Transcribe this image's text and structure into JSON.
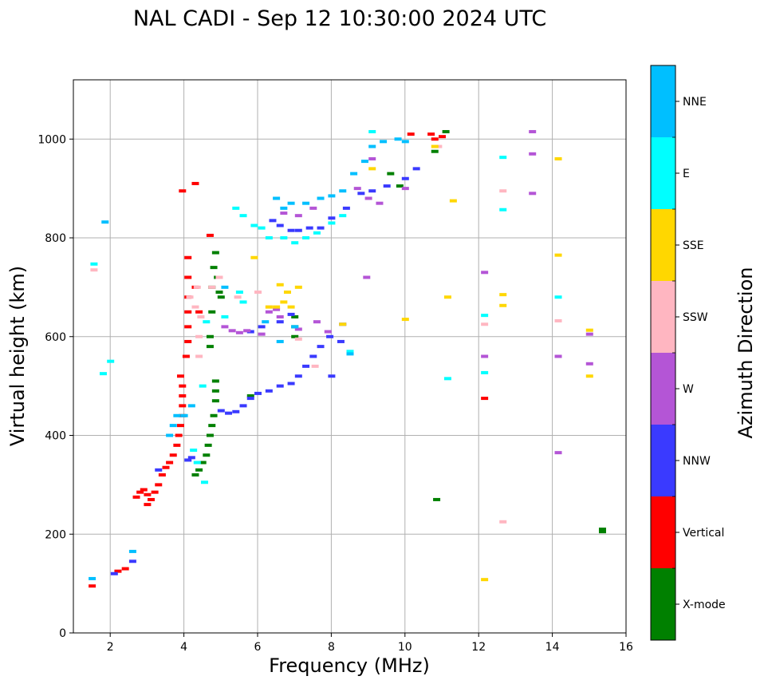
{
  "chart_data": {
    "type": "scatter",
    "title": "NAL CADI - Sep 12 10:30:00 2024 UTC",
    "xlabel": "Frequency (MHz)",
    "ylabel": "Virtual height (km)",
    "xlim": [
      1,
      16
    ],
    "ylim": [
      0,
      1120
    ],
    "xticks": [
      2,
      4,
      6,
      8,
      10,
      12,
      14,
      16
    ],
    "yticks": [
      0,
      200,
      400,
      600,
      800,
      1000
    ],
    "grid": true,
    "colorbar": {
      "label": "Azimuth Direction",
      "categories": [
        {
          "name": "X-mode",
          "color": "#008000"
        },
        {
          "name": "Vertical",
          "color": "#ff0000"
        },
        {
          "name": "NNW",
          "color": "#3a3aff"
        },
        {
          "name": "W",
          "color": "#b455d6"
        },
        {
          "name": "SSW",
          "color": "#ffb6c1"
        },
        {
          "name": "SSE",
          "color": "#ffd700"
        },
        {
          "name": "E",
          "color": "#00ffff"
        },
        {
          "name": "NNE",
          "color": "#00bfff"
        }
      ]
    },
    "series": [
      {
        "name": "X-mode",
        "points": [
          [
            4.85,
            510
          ],
          [
            4.85,
            490
          ],
          [
            4.85,
            470
          ],
          [
            4.8,
            440
          ],
          [
            4.75,
            420
          ],
          [
            4.7,
            400
          ],
          [
            4.65,
            380
          ],
          [
            4.6,
            360
          ],
          [
            4.5,
            345
          ],
          [
            4.4,
            330
          ],
          [
            4.3,
            320
          ],
          [
            4.7,
            580
          ],
          [
            4.7,
            600
          ],
          [
            4.75,
            650
          ],
          [
            4.75,
            700
          ],
          [
            4.8,
            740
          ],
          [
            4.85,
            770
          ],
          [
            4.9,
            720
          ],
          [
            4.95,
            690
          ],
          [
            5.0,
            680
          ],
          [
            7.0,
            640
          ],
          [
            7.0,
            620
          ],
          [
            7.0,
            600
          ],
          [
            10.85,
            270
          ],
          [
            15.35,
            210
          ],
          [
            15.35,
            205
          ],
          [
            9.6,
            930
          ],
          [
            9.85,
            905
          ],
          [
            11.1,
            1015
          ],
          [
            10.8,
            975
          ],
          [
            5.8,
            480
          ]
        ]
      },
      {
        "name": "Vertical",
        "points": [
          [
            2.7,
            275
          ],
          [
            2.8,
            285
          ],
          [
            2.9,
            290
          ],
          [
            3.0,
            280
          ],
          [
            3.1,
            270
          ],
          [
            3.0,
            260
          ],
          [
            3.2,
            285
          ],
          [
            3.3,
            300
          ],
          [
            3.4,
            320
          ],
          [
            3.5,
            335
          ],
          [
            3.6,
            345
          ],
          [
            3.7,
            360
          ],
          [
            3.8,
            380
          ],
          [
            3.85,
            400
          ],
          [
            3.9,
            420
          ],
          [
            3.95,
            440
          ],
          [
            3.95,
            460
          ],
          [
            3.95,
            480
          ],
          [
            3.95,
            500
          ],
          [
            3.9,
            520
          ],
          [
            4.05,
            560
          ],
          [
            4.1,
            590
          ],
          [
            4.1,
            620
          ],
          [
            4.1,
            650
          ],
          [
            4.1,
            680
          ],
          [
            4.1,
            720
          ],
          [
            4.1,
            760
          ],
          [
            4.3,
            700
          ],
          [
            4.4,
            650
          ],
          [
            3.95,
            895
          ],
          [
            4.3,
            910
          ],
          [
            4.7,
            805
          ],
          [
            10.7,
            1010
          ],
          [
            10.8,
            1000
          ],
          [
            11.0,
            1005
          ],
          [
            10.15,
            1010
          ],
          [
            12.15,
            475
          ],
          [
            2.2,
            125
          ],
          [
            2.4,
            130
          ],
          [
            1.5,
            95
          ]
        ]
      },
      {
        "name": "NNW",
        "points": [
          [
            5.0,
            450
          ],
          [
            5.2,
            445
          ],
          [
            5.4,
            448
          ],
          [
            5.6,
            460
          ],
          [
            5.8,
            475
          ],
          [
            6.0,
            485
          ],
          [
            6.3,
            490
          ],
          [
            6.6,
            500
          ],
          [
            6.9,
            505
          ],
          [
            7.1,
            520
          ],
          [
            7.3,
            540
          ],
          [
            7.5,
            560
          ],
          [
            7.7,
            580
          ],
          [
            7.95,
            600
          ],
          [
            8.25,
            590
          ],
          [
            8.3,
            625
          ],
          [
            5.8,
            610
          ],
          [
            6.1,
            620
          ],
          [
            6.6,
            630
          ],
          [
            6.9,
            645
          ],
          [
            4.1,
            350
          ],
          [
            4.2,
            355
          ],
          [
            3.3,
            330
          ],
          [
            6.4,
            835
          ],
          [
            6.6,
            825
          ],
          [
            6.9,
            815
          ],
          [
            7.1,
            815
          ],
          [
            7.4,
            820
          ],
          [
            7.7,
            820
          ],
          [
            8.0,
            840
          ],
          [
            8.4,
            860
          ],
          [
            8.8,
            890
          ],
          [
            9.1,
            895
          ],
          [
            9.5,
            905
          ],
          [
            10.0,
            920
          ],
          [
            10.3,
            940
          ],
          [
            8.0,
            520
          ],
          [
            2.6,
            145
          ],
          [
            2.1,
            120
          ]
        ]
      },
      {
        "name": "W",
        "points": [
          [
            5.1,
            620
          ],
          [
            5.3,
            612
          ],
          [
            5.5,
            608
          ],
          [
            5.7,
            612
          ],
          [
            6.3,
            650
          ],
          [
            6.5,
            655
          ],
          [
            6.6,
            640
          ],
          [
            6.1,
            605
          ],
          [
            7.1,
            615
          ],
          [
            7.6,
            630
          ],
          [
            7.9,
            610
          ],
          [
            8.7,
            900
          ],
          [
            9.0,
            880
          ],
          [
            9.3,
            870
          ],
          [
            6.7,
            850
          ],
          [
            7.1,
            845
          ],
          [
            7.5,
            860
          ],
          [
            8.95,
            720
          ],
          [
            12.15,
            730
          ],
          [
            12.15,
            560
          ],
          [
            13.45,
            1015
          ],
          [
            13.45,
            970
          ],
          [
            13.45,
            890
          ],
          [
            14.15,
            560
          ],
          [
            14.15,
            365
          ],
          [
            15.0,
            545
          ],
          [
            15.0,
            605
          ],
          [
            10.0,
            900
          ],
          [
            9.1,
            960
          ]
        ]
      },
      {
        "name": "SSW",
        "points": [
          [
            4.15,
            680
          ],
          [
            4.3,
            660
          ],
          [
            4.45,
            640
          ],
          [
            4.4,
            600
          ],
          [
            4.4,
            560
          ],
          [
            4.75,
            700
          ],
          [
            4.95,
            720
          ],
          [
            5.45,
            680
          ],
          [
            6.0,
            690
          ],
          [
            7.1,
            595
          ],
          [
            7.55,
            540
          ],
          [
            4.35,
            700
          ],
          [
            12.65,
            895
          ],
          [
            12.65,
            225
          ],
          [
            14.15,
            632
          ],
          [
            12.15,
            625
          ],
          [
            10.9,
            985
          ],
          [
            1.55,
            735
          ],
          [
            6.3,
            660
          ]
        ]
      },
      {
        "name": "SSE",
        "points": [
          [
            6.3,
            660
          ],
          [
            6.5,
            660
          ],
          [
            6.7,
            670
          ],
          [
            6.8,
            690
          ],
          [
            6.6,
            705
          ],
          [
            6.9,
            660
          ],
          [
            7.1,
            700
          ],
          [
            5.9,
            760
          ],
          [
            8.3,
            625
          ],
          [
            9.1,
            940
          ],
          [
            10.0,
            635
          ],
          [
            11.15,
            680
          ],
          [
            12.65,
            685
          ],
          [
            12.65,
            663
          ],
          [
            14.15,
            960
          ],
          [
            14.15,
            765
          ],
          [
            15.0,
            520
          ],
          [
            15.0,
            613
          ],
          [
            12.15,
            108
          ],
          [
            11.3,
            875
          ],
          [
            10.8,
            985
          ]
        ]
      },
      {
        "name": "E",
        "points": [
          [
            5.4,
            860
          ],
          [
            5.6,
            845
          ],
          [
            5.9,
            825
          ],
          [
            6.1,
            820
          ],
          [
            6.3,
            800
          ],
          [
            6.7,
            800
          ],
          [
            7.0,
            790
          ],
          [
            7.3,
            800
          ],
          [
            7.6,
            810
          ],
          [
            8.0,
            830
          ],
          [
            8.3,
            845
          ],
          [
            5.5,
            690
          ],
          [
            5.6,
            670
          ],
          [
            5.1,
            640
          ],
          [
            4.6,
            630
          ],
          [
            4.5,
            500
          ],
          [
            4.25,
            370
          ],
          [
            4.35,
            345
          ],
          [
            4.55,
            305
          ],
          [
            12.65,
            963
          ],
          [
            12.65,
            857
          ],
          [
            12.15,
            643
          ],
          [
            12.15,
            527
          ],
          [
            14.15,
            680
          ],
          [
            11.15,
            515
          ],
          [
            9.1,
            1015
          ],
          [
            1.55,
            747
          ],
          [
            1.8,
            525
          ],
          [
            2.0,
            550
          ],
          [
            8.5,
            570
          ]
        ]
      },
      {
        "name": "NNE",
        "points": [
          [
            6.5,
            880
          ],
          [
            6.7,
            860
          ],
          [
            6.9,
            870
          ],
          [
            7.3,
            870
          ],
          [
            7.7,
            880
          ],
          [
            8.0,
            885
          ],
          [
            8.3,
            895
          ],
          [
            8.6,
            930
          ],
          [
            8.9,
            955
          ],
          [
            9.1,
            985
          ],
          [
            9.4,
            995
          ],
          [
            9.8,
            1000
          ],
          [
            10.0,
            995
          ],
          [
            3.6,
            400
          ],
          [
            3.7,
            420
          ],
          [
            3.8,
            440
          ],
          [
            4.0,
            440
          ],
          [
            4.2,
            460
          ],
          [
            5.1,
            700
          ],
          [
            6.2,
            630
          ],
          [
            6.6,
            590
          ],
          [
            7.0,
            620
          ],
          [
            8.5,
            565
          ],
          [
            2.6,
            165
          ],
          [
            1.85,
            832
          ],
          [
            1.5,
            110
          ]
        ]
      }
    ]
  }
}
